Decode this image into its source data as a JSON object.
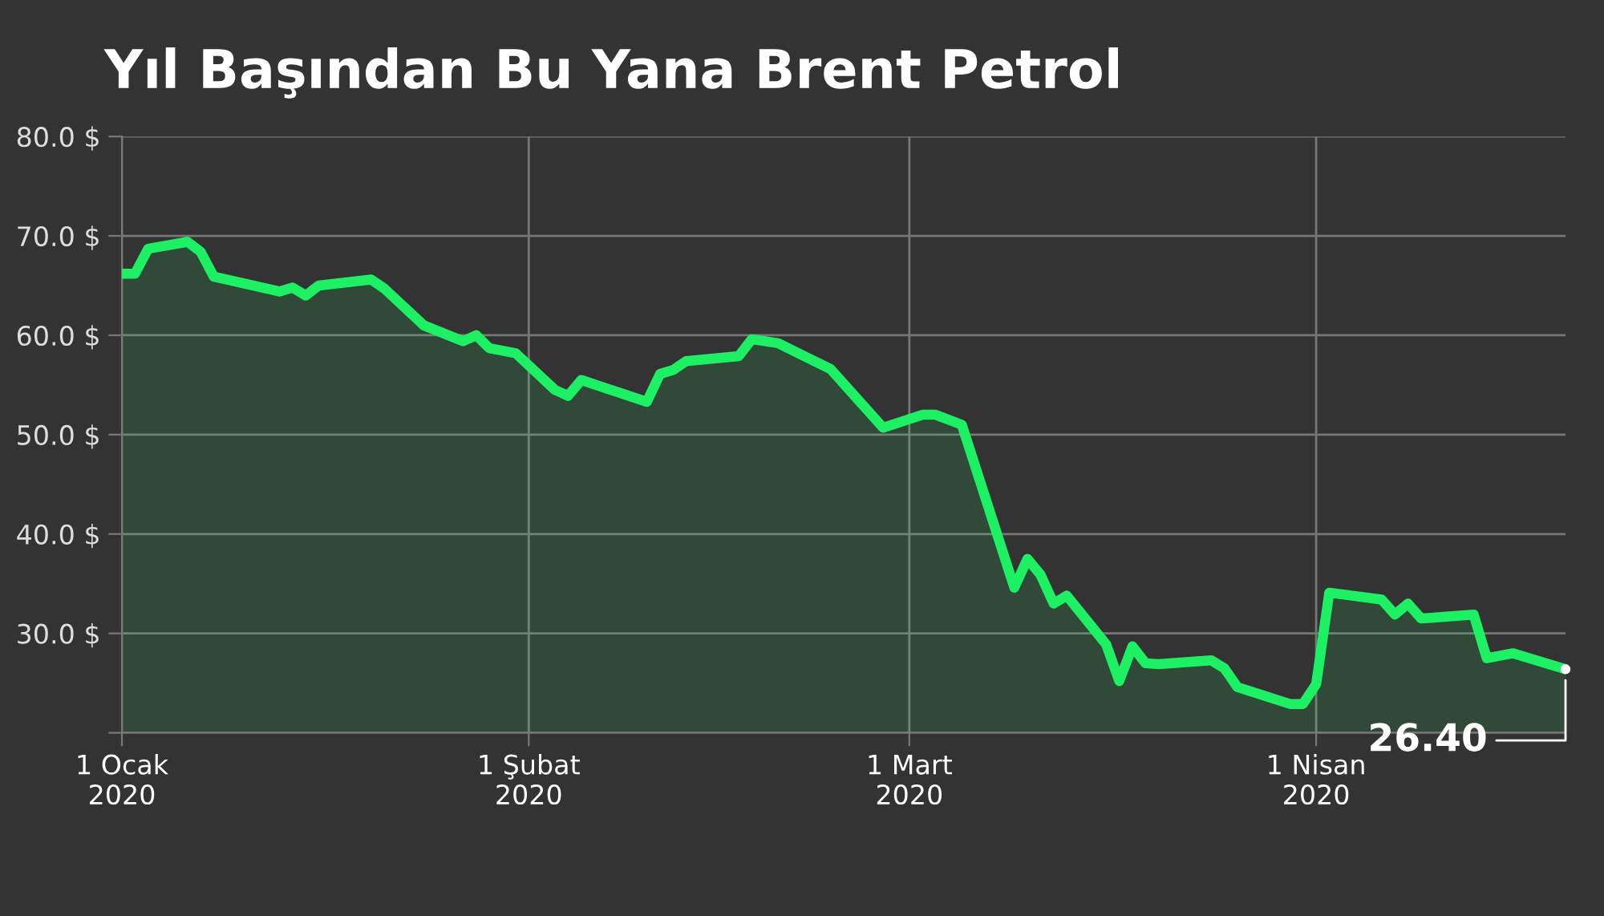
{
  "chart_data": {
    "type": "area",
    "title": "Yıl Başından Bu Yana Brent Petrol",
    "x": [
      "2020-01-01",
      "2020-01-02",
      "2020-01-03",
      "2020-01-06",
      "2020-01-07",
      "2020-01-08",
      "2020-01-13",
      "2020-01-14",
      "2020-01-15",
      "2020-01-16",
      "2020-01-20",
      "2020-01-21",
      "2020-01-24",
      "2020-01-27",
      "2020-01-28",
      "2020-01-29",
      "2020-01-31",
      "2020-02-03",
      "2020-02-04",
      "2020-02-05",
      "2020-02-10",
      "2020-02-11",
      "2020-02-12",
      "2020-02-13",
      "2020-02-17",
      "2020-02-18",
      "2020-02-20",
      "2020-02-24",
      "2020-02-28",
      "2020-03-02",
      "2020-03-03",
      "2020-03-05",
      "2020-03-09",
      "2020-03-10",
      "2020-03-11",
      "2020-03-12",
      "2020-03-13",
      "2020-03-16",
      "2020-03-17",
      "2020-03-18",
      "2020-03-19",
      "2020-03-20",
      "2020-03-24",
      "2020-03-25",
      "2020-03-26",
      "2020-03-30",
      "2020-03-31",
      "2020-04-01",
      "2020-04-02",
      "2020-04-06",
      "2020-04-07",
      "2020-04-08",
      "2020-04-09",
      "2020-04-13",
      "2020-04-14",
      "2020-04-16",
      "2020-04-20"
    ],
    "series": [
      {
        "color": "#1ef064",
        "values": [
          66.2,
          66.2,
          68.7,
          69.4,
          68.4,
          65.9,
          64.4,
          64.8,
          64.0,
          65.0,
          65.6,
          64.7,
          61.0,
          59.4,
          60.0,
          58.7,
          58.2,
          54.5,
          53.9,
          55.5,
          53.3,
          56.1,
          56.5,
          57.4,
          57.9,
          59.6,
          59.2,
          56.6,
          50.7,
          52.0,
          52.0,
          51.0,
          34.6,
          37.5,
          35.9,
          33.0,
          33.8,
          28.9,
          25.2,
          28.7,
          27.0,
          26.9,
          27.3,
          26.5,
          24.6,
          22.9,
          22.9,
          24.9,
          34.1,
          33.4,
          31.9,
          33.0,
          31.5,
          31.9,
          27.5,
          28.0,
          26.4
        ]
      }
    ],
    "xlim": [
      "2020-01-01",
      "2020-04-20"
    ],
    "xticks": [
      {
        "value": "2020-01-01",
        "label": "1 Ocak\n2020"
      },
      {
        "value": "2020-02-01",
        "label": "1 Şubat\n2020"
      },
      {
        "value": "2020-03-01",
        "label": "1 Mart\n2020"
      },
      {
        "value": "2020-04-01",
        "label": "1 Nisan\n2020"
      }
    ],
    "ylim": [
      20,
      80
    ],
    "yticks": [
      {
        "value": 20,
        "label": null
      },
      {
        "value": 30,
        "label": "30.0 $"
      },
      {
        "value": 40,
        "label": "40.0 $"
      },
      {
        "value": 50,
        "label": "50.0 $"
      },
      {
        "value": 60,
        "label": "60.0 $"
      },
      {
        "value": 70,
        "label": "70.0 $"
      },
      {
        "value": 80,
        "label": "80.0 $"
      }
    ],
    "grid": true,
    "annotations": [
      {
        "text": "26.40",
        "x": "2020-04-20",
        "y": 26.4
      }
    ]
  }
}
